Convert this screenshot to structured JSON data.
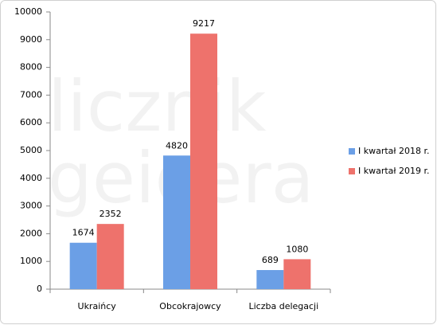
{
  "chart_data": {
    "type": "bar",
    "categories": [
      "Ukraińcy",
      "Obcokrajowcy",
      "Liczba delegacji"
    ],
    "series": [
      {
        "name": "I kwartał 2018 r.",
        "color": "#6b9fe6",
        "values": [
          1674,
          4820,
          689
        ]
      },
      {
        "name": "I kwartał 2019 r.",
        "color": "#ee726c",
        "values": [
          2352,
          9217,
          1080
        ]
      }
    ],
    "ylim": [
      0,
      10000
    ],
    "yticks": [
      0,
      1000,
      2000,
      3000,
      4000,
      5000,
      6000,
      7000,
      8000,
      9000,
      10000
    ],
    "grid": false,
    "legend": "right",
    "watermark": [
      "licznik",
      "geigera"
    ]
  }
}
